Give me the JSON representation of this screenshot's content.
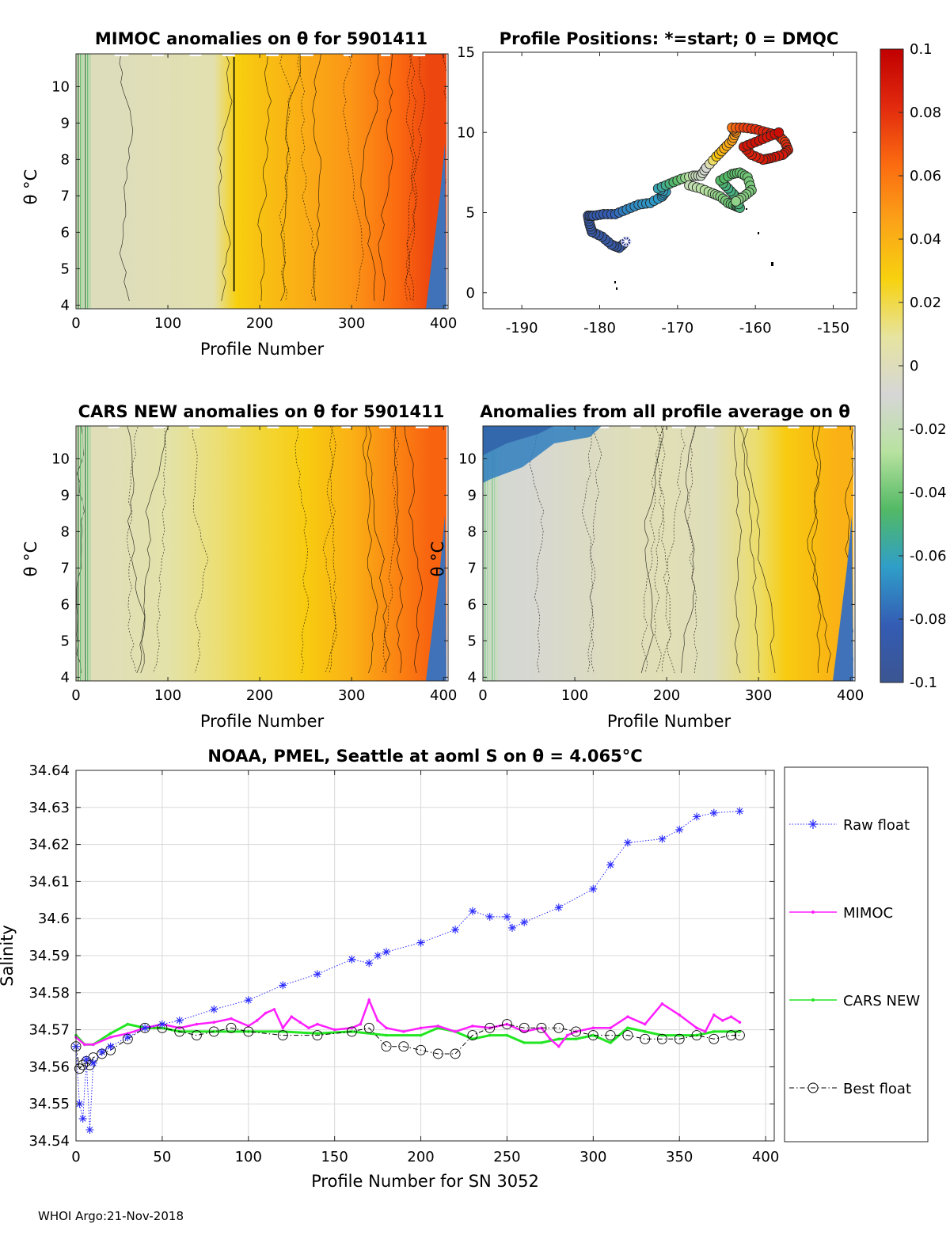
{
  "footer": "WHOI Argo:21-Nov-2018",
  "colors": {
    "raw": "#2b2bff",
    "mimoc": "#ff1fff",
    "cars": "#22e622",
    "best": "#000000",
    "grid": "#d9d9d9",
    "neutral": "#d4d4d4"
  },
  "colorbar": {
    "ticks": [
      "0.1",
      "0.08",
      "0.06",
      "0.04",
      "0.02",
      "0",
      "-0.02",
      "-0.04",
      "-0.06",
      "-0.08",
      "-0.1"
    ],
    "stops": [
      "#c00000",
      "#e22a0e",
      "#fb6b10",
      "#fba318",
      "#f7d20f",
      "#e6e4a0",
      "#d6d6d6",
      "#b8e2a0",
      "#52b964",
      "#2f9ec9",
      "#345cb4",
      "#3b5591"
    ]
  },
  "chart_data": [
    {
      "type": "heatmap",
      "title": "MIMOC anomalies on θ  for 5901411",
      "xlabel": "Profile Number",
      "ylabel": "θ °C",
      "xlim": [
        0,
        405
      ],
      "ylim": [
        3.9,
        10.9
      ],
      "xticks": [
        "0",
        "100",
        "200",
        "300",
        "400"
      ],
      "yticks": [
        "4",
        "5",
        "6",
        "7",
        "8",
        "9",
        "10"
      ],
      "anomaly_by_profile": {
        "x": [
          0,
          50,
          100,
          150,
          175,
          200,
          250,
          300,
          350,
          385
        ],
        "value": [
          0.0,
          0.0,
          0.002,
          0.004,
          0.028,
          0.034,
          0.042,
          0.05,
          0.064,
          0.074
        ]
      }
    },
    {
      "type": "scatter",
      "title": "Profile Positions: *=start; 0 = DMQC",
      "xlim": [
        -195,
        -147
      ],
      "ylim": [
        -1,
        15
      ],
      "xticks": [
        "-190",
        "-180",
        "-170",
        "-160",
        "-150"
      ],
      "yticks": [
        "0",
        "5",
        "10",
        "15"
      ],
      "track": {
        "lon": [
          -176.6,
          -177.5,
          -178.5,
          -179.7,
          -181.0,
          -181.3,
          -181.5,
          -180.8,
          -179.5,
          -178.0,
          -176.5,
          -175.0,
          -173.5,
          -172.0,
          -171.5,
          -172.5,
          -171.0,
          -169.5,
          -168.0,
          -167.0,
          -166.3,
          -165.0,
          -164.0,
          -163.0,
          -162.5,
          -163.0,
          -161.5,
          -160.0,
          -158.5,
          -157.0,
          -156.2,
          -155.8,
          -156.5,
          -158.0,
          -159.0,
          -160.5,
          -161.5,
          -160.0,
          -158.5,
          -157.0
        ],
        "lat": [
          3.2,
          2.8,
          3.0,
          3.5,
          3.8,
          4.3,
          4.8,
          4.8,
          4.9,
          4.9,
          5.2,
          5.5,
          5.6,
          6.0,
          6.3,
          6.5,
          6.8,
          7.1,
          7.3,
          7.3,
          7.8,
          8.5,
          9.0,
          9.5,
          10.0,
          10.3,
          10.3,
          10.2,
          10.0,
          9.8,
          9.4,
          8.9,
          8.6,
          8.4,
          8.3,
          8.6,
          9.1,
          9.4,
          9.7,
          10.0
        ],
        "anomaly": [
          -0.09,
          -0.09,
          -0.09,
          -0.09,
          -0.09,
          -0.09,
          -0.09,
          -0.085,
          -0.085,
          -0.08,
          -0.07,
          -0.068,
          -0.066,
          -0.064,
          -0.062,
          -0.06,
          -0.05,
          -0.04,
          -0.02,
          -0.015,
          -0.01,
          0.03,
          0.04,
          0.045,
          0.05,
          0.06,
          0.075,
          0.08,
          0.085,
          0.08,
          0.078,
          0.085,
          0.09,
          0.09,
          0.088,
          0.085,
          0.09,
          0.092,
          0.09,
          0.094
        ]
      },
      "branch": {
        "lon": [
          -168.5,
          -167.0,
          -165.5,
          -164.5,
          -163.5,
          -162.5,
          -162.0,
          -162.5,
          -163.5,
          -164.5,
          -163.0,
          -162.0,
          -161.0,
          -160.5,
          -161.5,
          -162.5
        ],
        "lat": [
          6.7,
          6.5,
          6.2,
          6.0,
          5.6,
          5.4,
          5.3,
          6.0,
          6.5,
          7.0,
          7.4,
          7.5,
          7.2,
          6.4,
          6.0,
          5.7
        ],
        "anomaly": [
          -0.02,
          -0.025,
          -0.03,
          -0.035,
          -0.04,
          -0.045,
          -0.05,
          -0.048,
          -0.052,
          -0.046,
          -0.044,
          -0.042,
          -0.04,
          -0.038,
          -0.036,
          -0.034
        ]
      },
      "start": {
        "lon": -176.6,
        "lat": 3.2
      }
    },
    {
      "type": "heatmap",
      "title": "CARS NEW anomalies on θ for 5901411",
      "xlabel": "Profile Number",
      "ylabel": "θ °C",
      "xlim": [
        0,
        405
      ],
      "ylim": [
        3.9,
        10.9
      ],
      "xticks": [
        "0",
        "100",
        "200",
        "300",
        "400"
      ],
      "yticks": [
        "4",
        "5",
        "6",
        "7",
        "8",
        "9",
        "10"
      ],
      "anomaly_by_profile": {
        "x": [
          0,
          50,
          100,
          150,
          200,
          250,
          300,
          350,
          385
        ],
        "value": [
          0.0,
          0.002,
          0.006,
          0.014,
          0.022,
          0.03,
          0.04,
          0.056,
          0.066
        ]
      }
    },
    {
      "type": "heatmap",
      "title": "Anomalies from all profile average on θ",
      "xlabel": "Profile Number",
      "ylabel": "θ °C",
      "xlim": [
        0,
        405
      ],
      "ylim": [
        3.9,
        10.9
      ],
      "xticks": [
        "0",
        "100",
        "200",
        "300",
        "400"
      ],
      "yticks": [
        "4",
        "5",
        "6",
        "7",
        "8",
        "9",
        "10"
      ],
      "anomaly_by_profile": {
        "x": [
          0,
          50,
          100,
          150,
          200,
          250,
          300,
          330,
          385
        ],
        "value": [
          -0.012,
          -0.008,
          -0.004,
          0.0,
          0.002,
          0.0,
          0.016,
          0.03,
          0.04
        ]
      }
    },
    {
      "type": "line",
      "title": "NOAA, PMEL, Seattle at aoml S on θ = 4.065°C",
      "xlabel": "Profile Number for SN 3052",
      "ylabel": "Salinity",
      "xlim": [
        0,
        405
      ],
      "ylim": [
        34.54,
        34.64
      ],
      "xticks": [
        "0",
        "50",
        "100",
        "150",
        "200",
        "250",
        "300",
        "350",
        "400"
      ],
      "yticks": [
        "34.64",
        "34.63",
        "34.62",
        "34.61",
        "34.6",
        "34.59",
        "34.58",
        "34.57",
        "34.56",
        "34.55",
        "34.54"
      ],
      "legend": [
        "Raw float",
        "MIMOC",
        "CARS NEW",
        "Best float"
      ],
      "legend_position": "right",
      "series": [
        {
          "name": "Raw float",
          "x": [
            0,
            2,
            4,
            6,
            8,
            10,
            15,
            20,
            30,
            40,
            50,
            60,
            80,
            100,
            120,
            140,
            160,
            170,
            175,
            180,
            200,
            220,
            230,
            240,
            250,
            253,
            260,
            280,
            300,
            310,
            320,
            340,
            350,
            360,
            370,
            385
          ],
          "y": [
            34.5655,
            34.55,
            34.546,
            34.562,
            34.543,
            34.561,
            34.564,
            34.5655,
            34.568,
            34.5705,
            34.5715,
            34.5725,
            34.5755,
            34.578,
            34.582,
            34.585,
            34.589,
            34.588,
            34.59,
            34.591,
            34.5935,
            34.597,
            34.602,
            34.6005,
            34.6005,
            34.5975,
            34.599,
            34.603,
            34.608,
            34.6145,
            34.6205,
            34.6215,
            34.624,
            34.6275,
            34.6285,
            34.629
          ]
        },
        {
          "name": "MIMOC",
          "x": [
            0,
            5,
            10,
            20,
            30,
            40,
            50,
            60,
            70,
            80,
            90,
            100,
            105,
            110,
            115,
            120,
            125,
            130,
            135,
            140,
            150,
            160,
            165,
            170,
            175,
            180,
            190,
            200,
            210,
            220,
            230,
            240,
            250,
            260,
            270,
            275,
            280,
            285,
            290,
            300,
            310,
            320,
            330,
            340,
            350,
            360,
            365,
            370,
            375,
            380,
            385
          ],
          "y": [
            34.568,
            34.566,
            34.566,
            34.568,
            34.569,
            34.5705,
            34.5715,
            34.5705,
            34.5715,
            34.572,
            34.573,
            34.571,
            34.5725,
            34.5745,
            34.5755,
            34.5705,
            34.5735,
            34.572,
            34.5705,
            34.5715,
            34.57,
            34.5705,
            34.5715,
            34.578,
            34.5725,
            34.5705,
            34.5695,
            34.5705,
            34.571,
            34.5695,
            34.571,
            34.5705,
            34.5715,
            34.5695,
            34.5705,
            34.5675,
            34.5655,
            34.5685,
            34.5695,
            34.5705,
            34.5705,
            34.5735,
            34.5715,
            34.577,
            34.574,
            34.5705,
            34.5695,
            34.574,
            34.5725,
            34.5735,
            34.572
          ]
        },
        {
          "name": "CARS NEW",
          "x": [
            0,
            5,
            10,
            20,
            30,
            40,
            50,
            60,
            80,
            100,
            120,
            140,
            160,
            180,
            200,
            210,
            220,
            230,
            240,
            250,
            260,
            270,
            280,
            290,
            300,
            310,
            320,
            330,
            340,
            350,
            360,
            370,
            380,
            385
          ],
          "y": [
            34.5685,
            34.566,
            34.566,
            34.569,
            34.5715,
            34.5705,
            34.5705,
            34.5695,
            34.5695,
            34.5695,
            34.5695,
            34.569,
            34.5695,
            34.5685,
            34.5685,
            34.5705,
            34.5695,
            34.5675,
            34.5685,
            34.5685,
            34.5665,
            34.5665,
            34.5675,
            34.5675,
            34.5685,
            34.5665,
            34.5705,
            34.5695,
            34.5685,
            34.5685,
            34.5685,
            34.5695,
            34.5695,
            34.5695
          ]
        },
        {
          "name": "Best float",
          "x": [
            0,
            2,
            4,
            6,
            8,
            10,
            15,
            20,
            30,
            40,
            50,
            60,
            70,
            80,
            90,
            100,
            120,
            140,
            160,
            170,
            180,
            190,
            200,
            210,
            220,
            230,
            240,
            250,
            260,
            270,
            280,
            290,
            300,
            310,
            320,
            330,
            340,
            350,
            360,
            370,
            380,
            385
          ],
          "y": [
            34.5655,
            34.5595,
            34.5605,
            34.5615,
            34.5605,
            34.5625,
            34.5635,
            34.5645,
            34.5675,
            34.5705,
            34.5705,
            34.5695,
            34.5685,
            34.5695,
            34.5705,
            34.5695,
            34.5685,
            34.5685,
            34.5695,
            34.5705,
            34.5655,
            34.5655,
            34.5645,
            34.5635,
            34.5635,
            34.5685,
            34.5705,
            34.5715,
            34.5705,
            34.5705,
            34.5705,
            34.5695,
            34.5685,
            34.5685,
            34.5685,
            34.5675,
            34.5675,
            34.5675,
            34.5685,
            34.5675,
            34.5685,
            34.5685
          ]
        }
      ]
    }
  ]
}
